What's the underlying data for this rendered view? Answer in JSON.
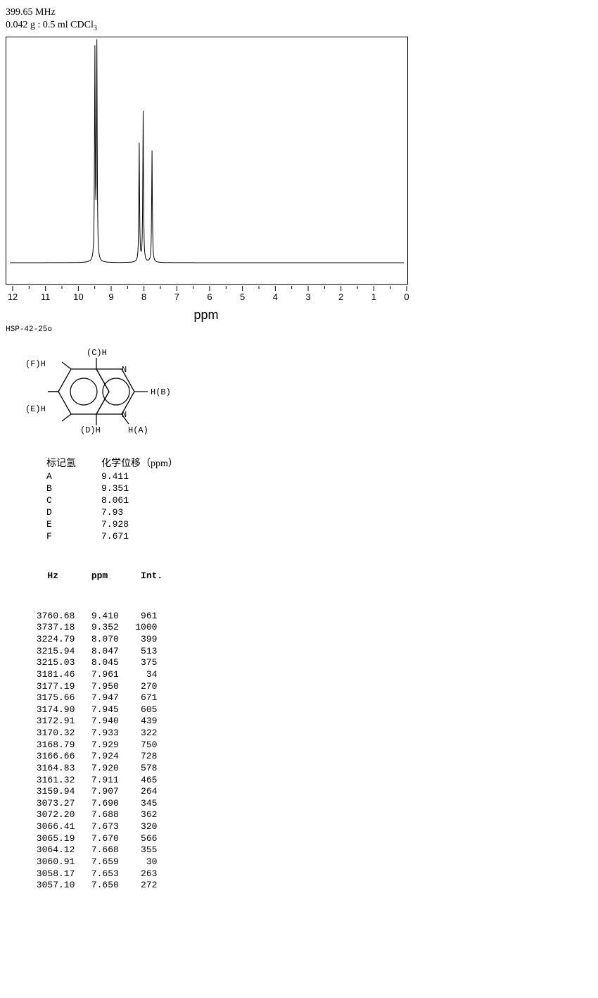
{
  "header": {
    "frequency": "399.65 MHz",
    "sample": "0.042 g : 0.5 ml CDCl",
    "sample_subscript": "3"
  },
  "spectrum": {
    "xlim": [
      0,
      12
    ],
    "xticks": [
      12,
      11,
      10,
      9,
      8,
      7,
      6,
      5,
      4,
      3,
      2,
      1,
      0
    ],
    "xlabel": "ppm",
    "background_color": "#ffffff",
    "line_color": "#000000",
    "peaks": [
      {
        "ppm": 9.41,
        "height": 0.97
      },
      {
        "ppm": 9.35,
        "height": 1.0
      },
      {
        "ppm": 8.06,
        "height": 0.55
      },
      {
        "ppm": 7.94,
        "height": 0.7
      },
      {
        "ppm": 7.67,
        "height": 0.52
      }
    ]
  },
  "sample_code": "HSP-42-25o",
  "structure": {
    "labels": {
      "A": "H(A)",
      "B": "H(B)",
      "C": "(C)H",
      "D": "(D)H",
      "E": "(E)H",
      "F": "(F)H"
    }
  },
  "assignment": {
    "header_hydrogen": "标记氢",
    "header_shift": "化学位移（ppm）",
    "rows": [
      {
        "label": "A",
        "shift": "9.411"
      },
      {
        "label": "B",
        "shift": "9.351"
      },
      {
        "label": "C",
        "shift": "8.061"
      },
      {
        "label": "D",
        "shift": "7.93"
      },
      {
        "label": "E",
        "shift": "7.928"
      },
      {
        "label": "F",
        "shift": "7.671"
      }
    ]
  },
  "peak_table": {
    "headers": [
      "Hz",
      "ppm",
      "Int."
    ],
    "rows": [
      [
        "3760.68",
        "9.410",
        "961"
      ],
      [
        "3737.18",
        "9.352",
        "1000"
      ],
      [
        "3224.79",
        "8.070",
        "399"
      ],
      [
        "3215.94",
        "8.047",
        "513"
      ],
      [
        "3215.03",
        "8.045",
        "375"
      ],
      [
        "3181.46",
        "7.961",
        "34"
      ],
      [
        "3177.19",
        "7.950",
        "270"
      ],
      [
        "3175.66",
        "7.947",
        "671"
      ],
      [
        "3174.90",
        "7.945",
        "605"
      ],
      [
        "3172.91",
        "7.940",
        "439"
      ],
      [
        "3170.32",
        "7.933",
        "322"
      ],
      [
        "3168.79",
        "7.929",
        "750"
      ],
      [
        "3166.66",
        "7.924",
        "728"
      ],
      [
        "3164.83",
        "7.920",
        "578"
      ],
      [
        "3161.32",
        "7.911",
        "465"
      ],
      [
        "3159.94",
        "7.907",
        "264"
      ],
      [
        "3073.27",
        "7.690",
        "345"
      ],
      [
        "3072.20",
        "7.688",
        "362"
      ],
      [
        "3066.41",
        "7.673",
        "320"
      ],
      [
        "3065.19",
        "7.670",
        "566"
      ],
      [
        "3064.12",
        "7.668",
        "355"
      ],
      [
        "3060.91",
        "7.659",
        "30"
      ],
      [
        "3058.17",
        "7.653",
        "263"
      ],
      [
        "3057.10",
        "7.650",
        "272"
      ]
    ]
  }
}
